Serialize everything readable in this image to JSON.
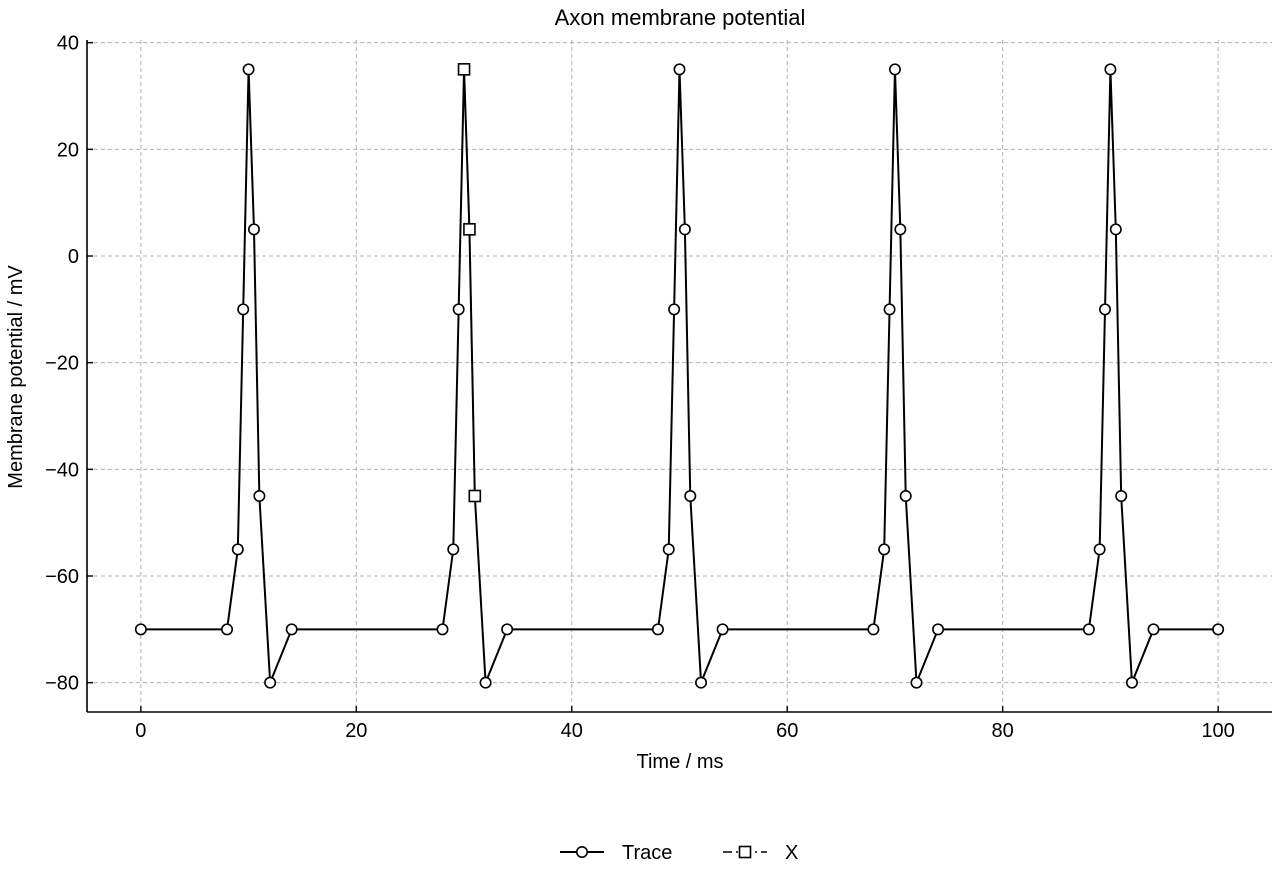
{
  "chart_data": {
    "type": "line",
    "title": "Axon membrane potential",
    "xlabel": "Time / ms",
    "ylabel": "Membrane potential / mV",
    "xlim": [
      -5,
      105
    ],
    "ylim": [
      -85.5,
      40.5
    ],
    "xticks": [
      0,
      20,
      40,
      60,
      80,
      100
    ],
    "yticks": [
      -80,
      -60,
      -40,
      -20,
      0,
      20,
      40
    ],
    "xtick_labels": [
      "0",
      "20",
      "40",
      "60",
      "80",
      "100"
    ],
    "ytick_labels": [
      "−80",
      "−60",
      "−40",
      "−20",
      "0",
      "20",
      "40"
    ],
    "grid": true,
    "legend_placement": "bottom-center",
    "series": [
      {
        "name": "Trace",
        "marker": "circle",
        "line": "solid",
        "color": "#000000",
        "x": [
          0,
          8,
          9,
          9.5,
          10,
          10.5,
          11,
          12,
          14,
          28,
          29,
          29.5,
          30,
          30.5,
          31,
          32,
          34,
          48,
          49,
          49.5,
          50,
          50.5,
          51,
          52,
          54,
          68,
          69,
          69.5,
          70,
          70.5,
          71,
          72,
          74,
          88,
          89,
          89.5,
          90,
          90.5,
          91,
          92,
          94,
          100
        ],
        "y": [
          -70,
          -70,
          -55,
          -10,
          35,
          5,
          -45,
          -80,
          -70,
          -70,
          -55,
          -10,
          35,
          5,
          -45,
          -80,
          -70,
          -70,
          -55,
          -10,
          35,
          5,
          -45,
          -80,
          -70,
          -70,
          -55,
          -10,
          35,
          5,
          -45,
          -80,
          -70,
          -70,
          -55,
          -10,
          35,
          5,
          -45,
          -80,
          -70,
          -70
        ]
      },
      {
        "name": "X",
        "marker": "square",
        "line": "dashdot",
        "color": "#000000",
        "x": [
          30,
          30.5,
          31
        ],
        "y": [
          35,
          5,
          -45
        ]
      }
    ]
  }
}
